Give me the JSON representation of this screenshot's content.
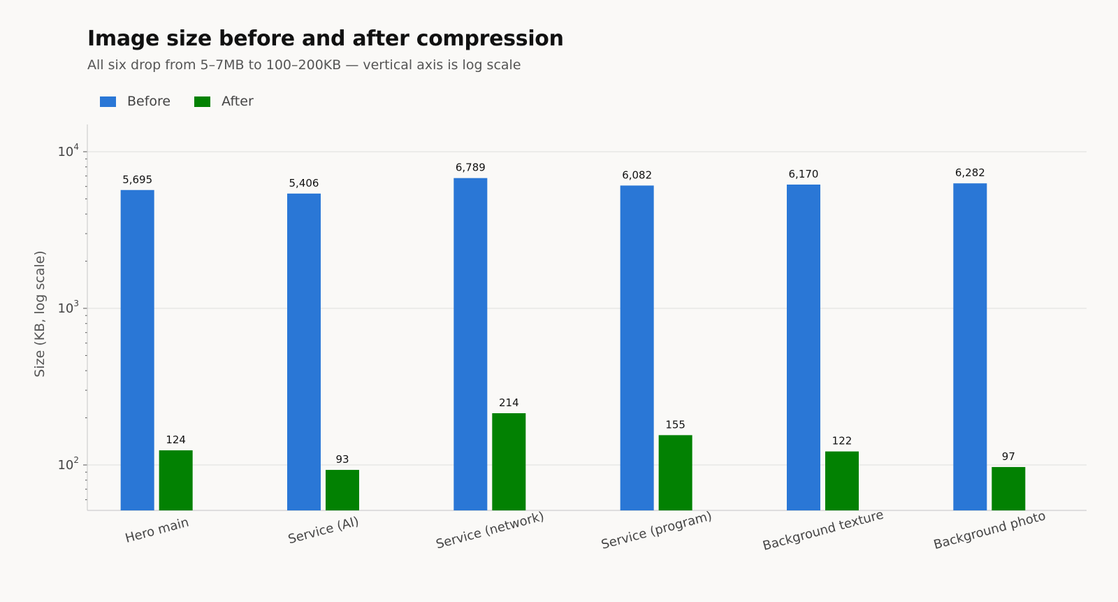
{
  "chart_data": {
    "type": "bar",
    "title": "Image size before and after compression",
    "subtitle": "All six drop from 5–7MB to 100–200KB — vertical axis is log scale",
    "ylabel": "Size (KB, log scale)",
    "xlabel": "",
    "yscale": "log",
    "ylim": [
      56,
      14000
    ],
    "yticks": [
      {
        "value": 100,
        "base": "10",
        "exp": "2"
      },
      {
        "value": 1000,
        "base": "10",
        "exp": "3"
      },
      {
        "value": 10000,
        "base": "10",
        "exp": "4"
      }
    ],
    "grid": "horizontal",
    "legend_position": "top-left",
    "categories": [
      "Hero main",
      "Service (AI)",
      "Service (network)",
      "Service (program)",
      "Background texture",
      "Background photo"
    ],
    "series": [
      {
        "name": "Before",
        "color": "#2a77d6",
        "values": [
          5695,
          5406,
          6789,
          6082,
          6170,
          6282
        ],
        "labels": [
          "5,695",
          "5,406",
          "6,789",
          "6,082",
          "6,170",
          "6,282"
        ]
      },
      {
        "name": "After",
        "color": "#028102",
        "values": [
          124,
          93,
          214,
          155,
          122,
          97
        ],
        "labels": [
          "124",
          "93",
          "214",
          "155",
          "122",
          "97"
        ]
      }
    ]
  }
}
